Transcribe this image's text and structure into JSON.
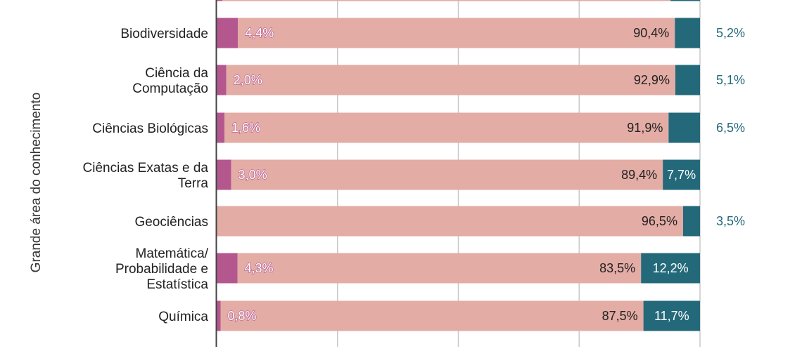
{
  "chart_data": {
    "type": "bar",
    "stacked": true,
    "orientation": "horizontal",
    "ylabel": "Grande área do conhecimento",
    "xlabel": "",
    "xlim": [
      0,
      100
    ],
    "grid": true,
    "categories": [
      "",
      "Biodiversidade",
      "Ciência da Computação",
      "Ciências Biológicas",
      "Ciências Exatas e da Terra",
      "Geociências",
      "Matemática/ Probabilidade e Estatística",
      "Química"
    ],
    "category_lines": [
      [
        ""
      ],
      [
        "Biodiversidade"
      ],
      [
        "Ciência da",
        "Computação"
      ],
      [
        "Ciências Biológicas"
      ],
      [
        "Ciências Exatas e da",
        "Terra"
      ],
      [
        "Geociências"
      ],
      [
        "Matemática/",
        "Probabilidade e",
        "Estatística"
      ],
      [
        "Química"
      ]
    ],
    "series": [
      {
        "color": "#b5578f",
        "values": [
          1.2,
          4.4,
          2.0,
          1.6,
          3.0,
          0.0,
          4.3,
          0.8
        ],
        "labels": [
          "",
          "4,4%",
          "2,0%",
          "1,6%",
          "3,0%",
          "",
          "4,3%",
          "0,8%"
        ]
      },
      {
        "color": "#e3aca5",
        "values": [
          92.7,
          90.4,
          92.9,
          91.9,
          89.4,
          96.5,
          83.5,
          87.5
        ],
        "labels": [
          "",
          "90,4%",
          "92,9%",
          "91,9%",
          "89,4%",
          "96,5%",
          "83,5%",
          "87,5%"
        ]
      },
      {
        "color": "#23697a",
        "values": [
          6.1,
          5.2,
          5.1,
          6.5,
          7.7,
          3.5,
          12.2,
          11.7
        ],
        "labels": [
          "",
          "5,2%",
          "5,1%",
          "6,5%",
          "7,7%",
          "3,5%",
          "12,2%",
          "11,7%"
        ]
      }
    ],
    "colors": {
      "series1": "#b5578f",
      "series2": "#e3aca5",
      "series3": "#23697a",
      "grid": "#c8c8c8",
      "axis": "#444444"
    }
  }
}
